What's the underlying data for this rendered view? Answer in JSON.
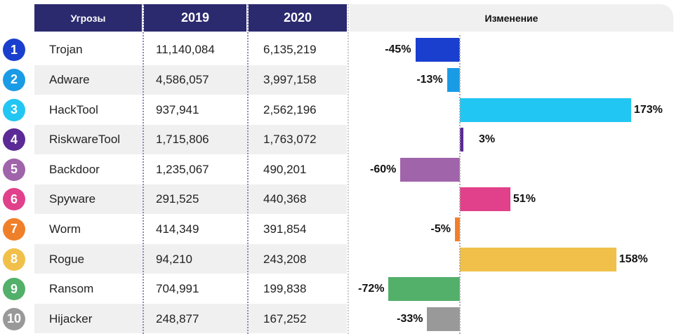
{
  "headers": {
    "threats": "Угрозы",
    "y2019": "2019",
    "y2020": "2020",
    "change": "Изменение"
  },
  "chart_data": {
    "type": "table",
    "title": "",
    "columns": [
      "Угрозы",
      "2019",
      "2020",
      "Изменение"
    ],
    "rows": [
      {
        "rank": "1",
        "name": "Trojan",
        "v2019": "11,140,084",
        "v2020": "6,135,219",
        "change": -45,
        "change_label": "-45%",
        "color": "#1a3fcf"
      },
      {
        "rank": "2",
        "name": "Adware",
        "v2019": "4,586,057",
        "v2020": "3,997,158",
        "change": -13,
        "change_label": "-13%",
        "color": "#1a9be6"
      },
      {
        "rank": "3",
        "name": "HackTool",
        "v2019": "937,941",
        "v2020": "2,562,196",
        "change": 173,
        "change_label": "173%",
        "color": "#22c6f2"
      },
      {
        "rank": "4",
        "name": "RiskwareTool",
        "v2019": "1,715,806",
        "v2020": "1,763,072",
        "change": 3,
        "change_label": "3%",
        "color": "#5b2a96"
      },
      {
        "rank": "5",
        "name": "Backdoor",
        "v2019": "1,235,067",
        "v2020": "490,201",
        "change": -60,
        "change_label": "-60%",
        "color": "#a064aa"
      },
      {
        "rank": "6",
        "name": "Spyware",
        "v2019": "291,525",
        "v2020": "440,368",
        "change": 51,
        "change_label": "51%",
        "color": "#e1408a"
      },
      {
        "rank": "7",
        "name": "Worm",
        "v2019": "414,349",
        "v2020": "391,854",
        "change": -5,
        "change_label": "-5%",
        "color": "#f07f2a"
      },
      {
        "rank": "8",
        "name": "Rogue",
        "v2019": "94,210",
        "v2020": "243,208",
        "change": 158,
        "change_label": "158%",
        "color": "#f0c04a"
      },
      {
        "rank": "9",
        "name": "Ransom",
        "v2019": "704,991",
        "v2020": "199,838",
        "change": -72,
        "change_label": "-72%",
        "color": "#52b06a"
      },
      {
        "rank": "10",
        "name": "Hijacker",
        "v2019": "248,877",
        "v2020": "167,252",
        "change": -33,
        "change_label": "-33%",
        "color": "#999999"
      }
    ]
  }
}
